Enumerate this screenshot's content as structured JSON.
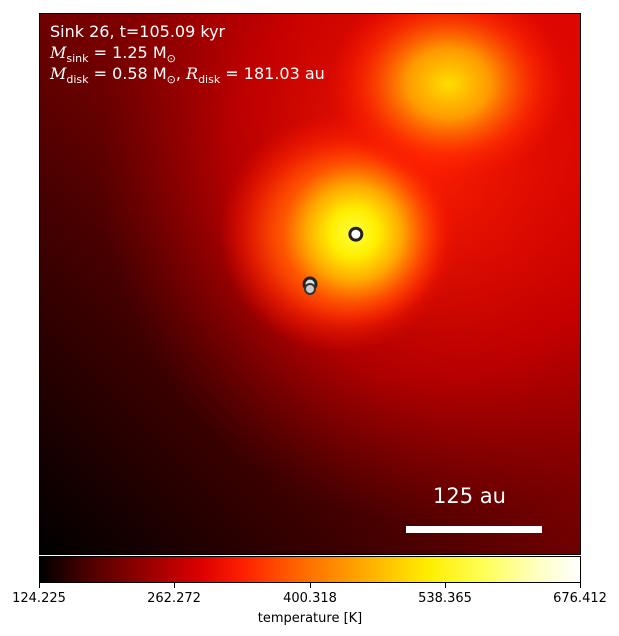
{
  "chart_data": {
    "type": "heatmap",
    "annotation": {
      "line1": "Sink 26, t=105.09 kyr",
      "line2_symbol": "M",
      "line2_sub": "sink",
      "line2_value": " = 1.25 M",
      "line2_unit_sub": "⊙",
      "line3_symbol1": "M",
      "line3_sub1": "disk",
      "line3_value1": " = 0.58 M",
      "line3_unit_sub": "⊙",
      "line3_sep": ", ",
      "line3_symbol2": "R",
      "line3_sub2": "disk",
      "line3_value2": " = 181.03 au"
    },
    "scale_bar": {
      "label": "125 au",
      "length_au": 125
    },
    "colorbar": {
      "label": "temperature [K]",
      "min": 124.225,
      "max": 676.412,
      "ticks": [
        "124.225",
        "262.272",
        "400.318",
        "538.365",
        "676.412"
      ],
      "colormap": "hot"
    },
    "sinks": [
      {
        "name": "sink-main"
      },
      {
        "name": "sink-pair-a"
      },
      {
        "name": "sink-pair-b"
      }
    ]
  }
}
